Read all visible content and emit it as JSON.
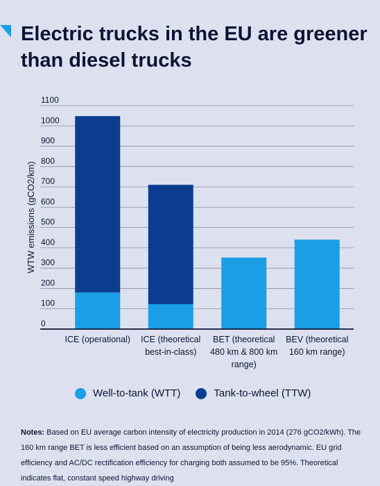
{
  "title": "Electric trucks in the EU are greener than diesel trucks",
  "colors": {
    "wtt": "#1a9ee6",
    "ttw": "#0a3d8f",
    "background": "#dde1ef",
    "text": "#0d1333"
  },
  "legend": [
    {
      "label": "Well-to-tank (WTT)",
      "color": "#1a9ee6"
    },
    {
      "label": "Tank-to-wheel (TTW)",
      "color": "#0a3d8f"
    }
  ],
  "notes": {
    "label": "Notes:",
    "text": "Based on EU average carbon intensity of electricity production in 2014 (276 gCO2/kWh). The 160 km range BET is less efficient based on an assumption of being less aerodynamic.  EU grid efficiency and AC/DC rectification efficiency for charging both assumed to be 95%.  Theoretical indicates flat, constant speed highway driving"
  },
  "chart_data": {
    "type": "bar",
    "stacked": true,
    "title": "Electric trucks in the EU are greener than diesel trucks",
    "ylabel": "WTW emissions (gCO2/km)",
    "xlabel": "",
    "ylim": [
      0,
      1100
    ],
    "yticks": [
      0,
      100,
      200,
      300,
      400,
      500,
      600,
      700,
      800,
      900,
      1000,
      1100
    ],
    "grid": true,
    "legend_position": "bottom",
    "categories": [
      [
        "ICE (operational)"
      ],
      [
        "ICE (theoretical",
        "best-in-class)"
      ],
      [
        "BET (theoretical",
        "480 km & 800 km",
        "range)"
      ],
      [
        "BEV (theoretical",
        "160 km range)"
      ]
    ],
    "series": [
      {
        "name": "Well-to-tank (WTT)",
        "color": "#1a9ee6",
        "values": [
          180,
          123,
          352,
          440
        ]
      },
      {
        "name": "Tank-to-wheel (TTW)",
        "color": "#0a3d8f",
        "values": [
          868,
          587,
          0,
          0
        ]
      }
    ]
  }
}
